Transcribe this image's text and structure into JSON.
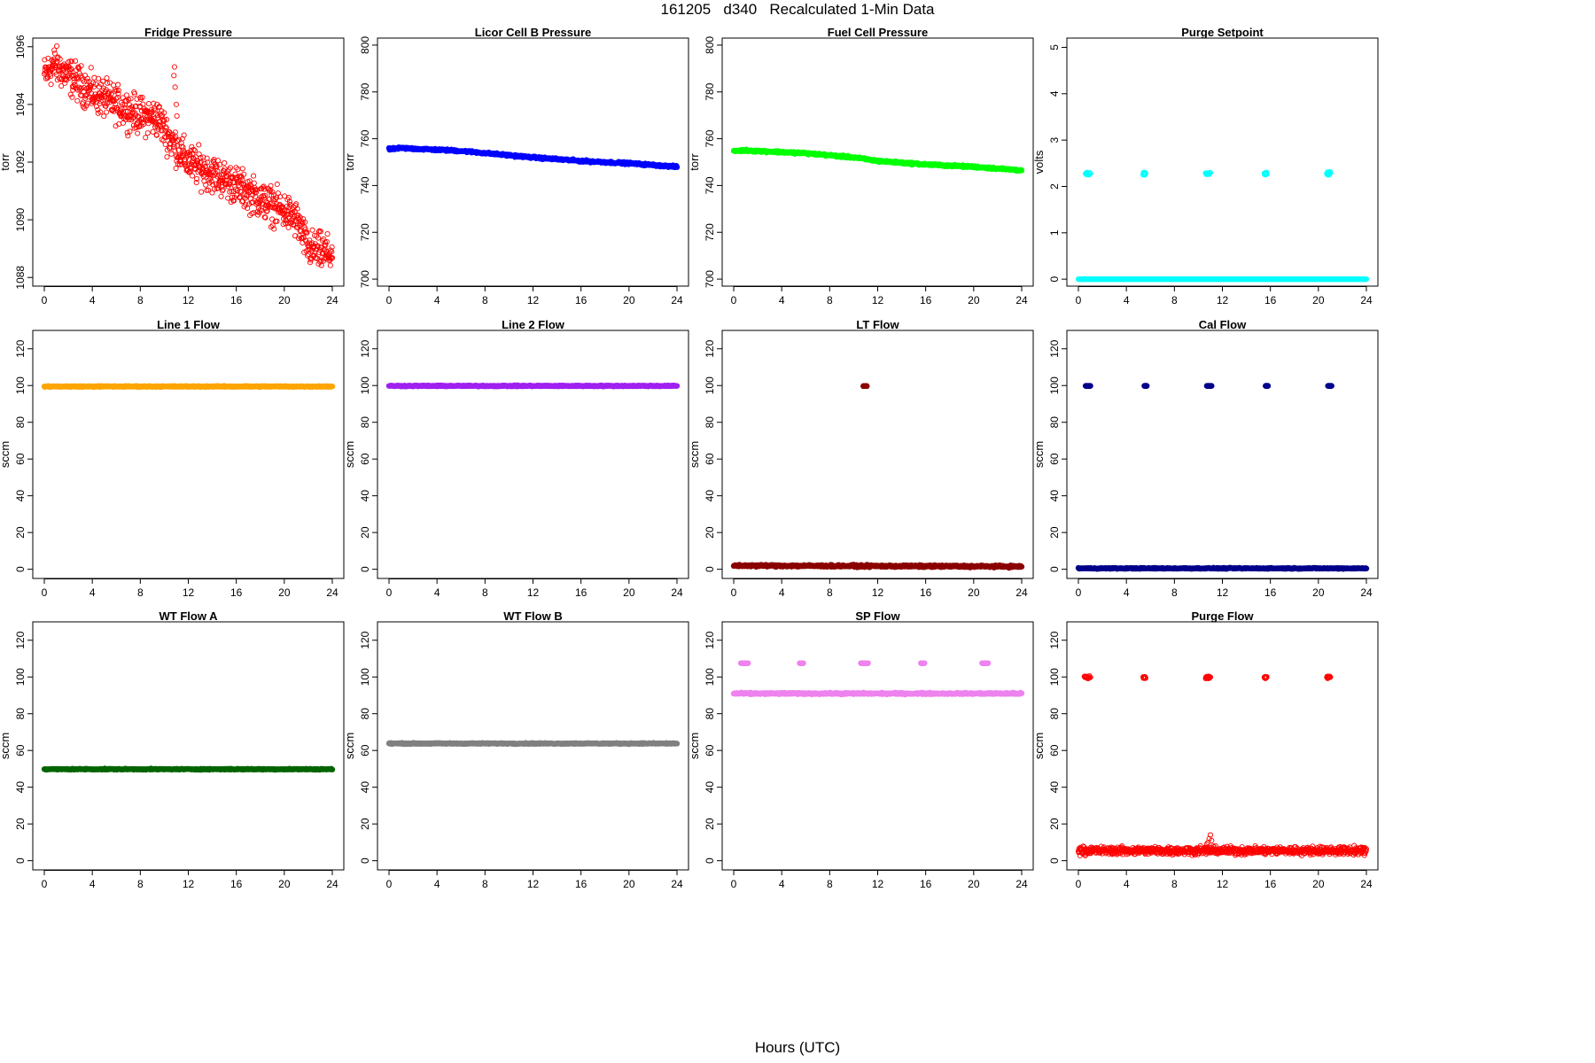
{
  "figure": {
    "title": "161205   d340   Recalculated 1-Min Data",
    "xlabel": "Hours (UTC)"
  },
  "chart_data": [
    {
      "type": "scatter",
      "title": "Fridge Pressure",
      "xlabel": "",
      "ylabel": "torr",
      "xlim": [
        0,
        24
      ],
      "ylim": [
        1087.7,
        1096.3
      ],
      "xticks": [
        0,
        4,
        8,
        12,
        16,
        20,
        24
      ],
      "yticks": [
        1088,
        1090,
        1092,
        1094,
        1096
      ],
      "color": "#ff0000",
      "marker": "open-circle",
      "series": [
        {
          "trend": [
            [
              0,
              1095.0
            ],
            [
              0.8,
              1095.4
            ],
            [
              2,
              1095.0
            ],
            [
              4,
              1094.4
            ],
            [
              6,
              1094.0
            ],
            [
              8,
              1093.6
            ],
            [
              9.5,
              1093.5
            ],
            [
              10.5,
              1092.8
            ],
            [
              12,
              1092.0
            ],
            [
              14,
              1091.6
            ],
            [
              16,
              1091.2
            ],
            [
              18,
              1090.7
            ],
            [
              20,
              1090.3
            ],
            [
              21,
              1090.0
            ],
            [
              22,
              1089.0
            ],
            [
              23,
              1088.9
            ],
            [
              24,
              1088.8
            ]
          ],
          "noise": 0.45,
          "spikes": [
            [
              10.8,
              1095.0
            ],
            [
              10.9,
              1094.6
            ],
            [
              11.0,
              1094.0
            ],
            [
              11.05,
              1093.6
            ],
            [
              10.85,
              1095.3
            ]
          ]
        }
      ]
    },
    {
      "type": "scatter",
      "title": "Licor Cell B Pressure",
      "xlabel": "",
      "ylabel": "torr",
      "xlim": [
        0,
        24
      ],
      "ylim": [
        697,
        803
      ],
      "xticks": [
        0,
        4,
        8,
        12,
        16,
        20,
        24
      ],
      "yticks": [
        700,
        720,
        740,
        760,
        780,
        800
      ],
      "color": "#0000ff",
      "marker": "filled-circle",
      "series": [
        {
          "trend": [
            [
              0,
              755.5
            ],
            [
              1,
              756.0
            ],
            [
              6,
              754.8
            ],
            [
              12,
              752.0
            ],
            [
              16,
              750.5
            ],
            [
              20,
              749.5
            ],
            [
              24,
              748.0
            ]
          ],
          "noise": 0.3
        }
      ]
    },
    {
      "type": "scatter",
      "title": "Fuel Cell Pressure",
      "xlabel": "",
      "ylabel": "torr",
      "xlim": [
        0,
        24
      ],
      "ylim": [
        697,
        803
      ],
      "xticks": [
        0,
        4,
        8,
        12,
        16,
        20,
        24
      ],
      "yticks": [
        700,
        720,
        740,
        760,
        780,
        800
      ],
      "color": "#00ff00",
      "marker": "filled-circle",
      "series": [
        {
          "trend": [
            [
              0,
              754.8
            ],
            [
              1,
              755.0
            ],
            [
              6,
              753.8
            ],
            [
              10,
              752.0
            ],
            [
              12,
              750.5
            ],
            [
              16,
              749.0
            ],
            [
              20,
              748.0
            ],
            [
              24,
              746.5
            ]
          ],
          "noise": 0.3
        }
      ]
    },
    {
      "type": "scatter",
      "title": "Purge Setpoint",
      "xlabel": "",
      "ylabel": "volts",
      "xlim": [
        0,
        24
      ],
      "ylim": [
        -0.15,
        5.2
      ],
      "xticks": [
        0,
        4,
        8,
        12,
        16,
        20,
        24
      ],
      "yticks": [
        0,
        1,
        2,
        3,
        4,
        5
      ],
      "color": "#00ffff",
      "marker": "open-circle",
      "series": [
        {
          "trend": [
            [
              0,
              0
            ],
            [
              24,
              0
            ]
          ],
          "noise": 0.0
        }
      ],
      "bursts": [
        {
          "x": [
            0.6,
            1.0
          ],
          "y": 2.28
        },
        {
          "x": [
            5.4,
            5.6
          ],
          "y": 2.28
        },
        {
          "x": [
            10.6,
            11.0
          ],
          "y": 2.28
        },
        {
          "x": [
            15.5,
            15.7
          ],
          "y": 2.28
        },
        {
          "x": [
            20.7,
            21.0
          ],
          "y": 2.28
        }
      ]
    },
    {
      "type": "scatter",
      "title": "Line 1 Flow",
      "xlabel": "",
      "ylabel": "sccm",
      "xlim": [
        0,
        24
      ],
      "ylim": [
        -5,
        130
      ],
      "xticks": [
        0,
        4,
        8,
        12,
        16,
        20,
        24
      ],
      "yticks": [
        0,
        20,
        40,
        60,
        80,
        100,
        120
      ],
      "color": "#ffa500",
      "marker": "filled-circle",
      "series": [
        {
          "trend": [
            [
              0,
              99.5
            ],
            [
              24,
              99.5
            ]
          ],
          "noise": 0.2
        }
      ]
    },
    {
      "type": "scatter",
      "title": "Line 2 Flow",
      "xlabel": "",
      "ylabel": "sccm",
      "xlim": [
        0,
        24
      ],
      "ylim": [
        -5,
        130
      ],
      "xticks": [
        0,
        4,
        8,
        12,
        16,
        20,
        24
      ],
      "yticks": [
        0,
        20,
        40,
        60,
        80,
        100,
        120
      ],
      "color": "#a020f0",
      "marker": "filled-circle",
      "series": [
        {
          "trend": [
            [
              0,
              99.8
            ],
            [
              24,
              99.8
            ]
          ],
          "noise": 0.2
        }
      ]
    },
    {
      "type": "scatter",
      "title": "LT Flow",
      "xlabel": "",
      "ylabel": "sccm",
      "xlim": [
        0,
        24
      ],
      "ylim": [
        -5,
        130
      ],
      "xticks": [
        0,
        4,
        8,
        12,
        16,
        20,
        24
      ],
      "yticks": [
        0,
        20,
        40,
        60,
        80,
        100,
        120
      ],
      "color": "#8b0000",
      "marker": "filled-circle",
      "series": [
        {
          "trend": [
            [
              0,
              2.0
            ],
            [
              24,
              1.5
            ]
          ],
          "noise": 0.4
        }
      ],
      "bursts": [
        {
          "x": [
            10.8,
            11.1
          ],
          "y": 99.7
        }
      ]
    },
    {
      "type": "scatter",
      "title": "Cal Flow",
      "xlabel": "",
      "ylabel": "sccm",
      "xlim": [
        0,
        24
      ],
      "ylim": [
        -5,
        130
      ],
      "xticks": [
        0,
        4,
        8,
        12,
        16,
        20,
        24
      ],
      "yticks": [
        0,
        20,
        40,
        60,
        80,
        100,
        120
      ],
      "color": "#00008b",
      "marker": "filled-circle",
      "series": [
        {
          "trend": [
            [
              0,
              0.5
            ],
            [
              24,
              0.5
            ]
          ],
          "noise": 0.2
        }
      ],
      "bursts": [
        {
          "x": [
            0.6,
            1.0
          ],
          "y": 99.8
        },
        {
          "x": [
            5.5,
            5.7
          ],
          "y": 99.8
        },
        {
          "x": [
            10.7,
            11.1
          ],
          "y": 99.8
        },
        {
          "x": [
            15.6,
            15.8
          ],
          "y": 99.8
        },
        {
          "x": [
            20.8,
            21.1
          ],
          "y": 99.8
        }
      ]
    },
    {
      "type": "scatter",
      "title": "WT Flow A",
      "xlabel": "",
      "ylabel": "sccm",
      "xlim": [
        0,
        24
      ],
      "ylim": [
        -5,
        130
      ],
      "xticks": [
        0,
        4,
        8,
        12,
        16,
        20,
        24
      ],
      "yticks": [
        0,
        20,
        40,
        60,
        80,
        100,
        120
      ],
      "color": "#006400",
      "marker": "filled-circle",
      "series": [
        {
          "trend": [
            [
              0,
              49.8
            ],
            [
              24,
              49.8
            ]
          ],
          "noise": 0.2
        }
      ]
    },
    {
      "type": "scatter",
      "title": "WT Flow B",
      "xlabel": "",
      "ylabel": "sccm",
      "xlim": [
        0,
        24
      ],
      "ylim": [
        -5,
        130
      ],
      "xticks": [
        0,
        4,
        8,
        12,
        16,
        20,
        24
      ],
      "yticks": [
        0,
        20,
        40,
        60,
        80,
        100,
        120
      ],
      "color": "#808080",
      "marker": "filled-circle",
      "series": [
        {
          "trend": [
            [
              0,
              63.8
            ],
            [
              24,
              63.8
            ]
          ],
          "noise": 0.2
        }
      ]
    },
    {
      "type": "scatter",
      "title": "SP Flow",
      "xlabel": "",
      "ylabel": "sccm",
      "xlim": [
        0,
        24
      ],
      "ylim": [
        -5,
        130
      ],
      "xticks": [
        0,
        4,
        8,
        12,
        16,
        20,
        24
      ],
      "yticks": [
        0,
        20,
        40,
        60,
        80,
        100,
        120
      ],
      "color": "#ee82ee",
      "marker": "filled-circle",
      "series": [
        {
          "trend": [
            [
              0,
              91
            ],
            [
              24,
              91
            ]
          ],
          "noise": 0.3
        }
      ],
      "bursts": [
        {
          "x": [
            0.6,
            1.2
          ],
          "y": 107.5
        },
        {
          "x": [
            5.5,
            5.8
          ],
          "y": 107.5
        },
        {
          "x": [
            10.6,
            11.2
          ],
          "y": 107.5
        },
        {
          "x": [
            15.6,
            15.9
          ],
          "y": 107.5
        },
        {
          "x": [
            20.7,
            21.2
          ],
          "y": 107.5
        }
      ]
    },
    {
      "type": "scatter",
      "title": "Purge Flow",
      "xlabel": "",
      "ylabel": "sccm",
      "xlim": [
        0,
        24
      ],
      "ylim": [
        -5,
        130
      ],
      "xticks": [
        0,
        4,
        8,
        12,
        16,
        20,
        24
      ],
      "yticks": [
        0,
        20,
        40,
        60,
        80,
        100,
        120
      ],
      "color": "#ff0000",
      "marker": "open-circle",
      "series": [
        {
          "trend": [
            [
              0,
              5.5
            ],
            [
              24,
              5.5
            ]
          ],
          "noise": 1.5
        }
      ],
      "bursts": [
        {
          "x": [
            0.5,
            1.0
          ],
          "y": 99.8
        },
        {
          "x": [
            5.4,
            5.6
          ],
          "y": 99.8
        },
        {
          "x": [
            10.6,
            11.0
          ],
          "y": 99.8
        },
        {
          "x": [
            15.5,
            15.7
          ],
          "y": 99.8
        },
        {
          "x": [
            20.7,
            21.0
          ],
          "y": 99.8
        }
      ],
      "spikes": [
        [
          10.8,
          10
        ],
        [
          10.9,
          12
        ],
        [
          11.0,
          14
        ],
        [
          11.1,
          11
        ],
        [
          10.7,
          9
        ]
      ]
    }
  ]
}
